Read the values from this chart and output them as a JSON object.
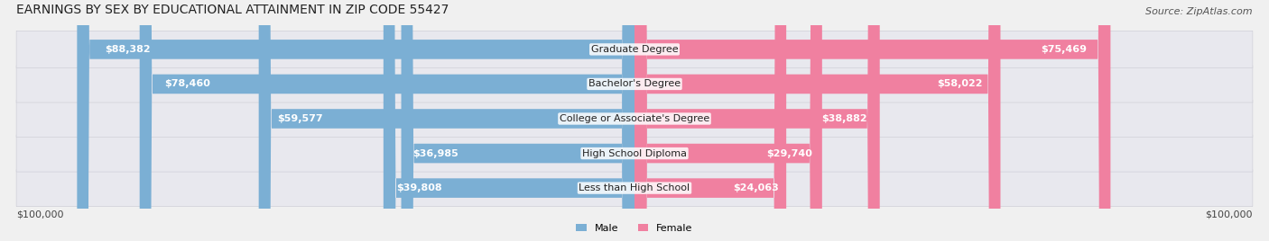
{
  "title": "EARNINGS BY SEX BY EDUCATIONAL ATTAINMENT IN ZIP CODE 55427",
  "source": "Source: ZipAtlas.com",
  "categories": [
    "Less than High School",
    "High School Diploma",
    "College or Associate's Degree",
    "Bachelor's Degree",
    "Graduate Degree"
  ],
  "male_values": [
    39808,
    36985,
    59577,
    78460,
    88382
  ],
  "female_values": [
    24063,
    29740,
    38882,
    58022,
    75469
  ],
  "max_value": 100000,
  "male_color": "#7BAFD4",
  "female_color": "#F080A0",
  "male_label": "Male",
  "female_label": "Female",
  "bg_color": "#F0F0F0",
  "bar_bg_color": "#E0E0E8",
  "axis_label_left": "$100,000",
  "axis_label_right": "$100,000",
  "title_fontsize": 10,
  "source_fontsize": 8,
  "bar_label_fontsize": 8,
  "category_fontsize": 8
}
